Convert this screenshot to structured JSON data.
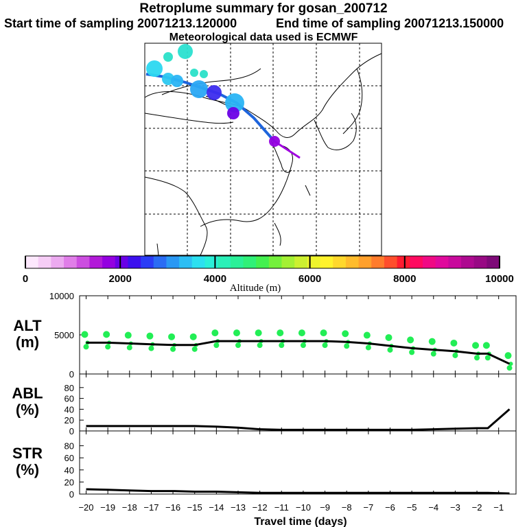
{
  "header": {
    "title": "Retroplume summary for gosan_200712",
    "start_label": "Start time of sampling 20071213.120000",
    "end_label": "End time of sampling 20071213.150000",
    "met_label": "Meteorological data used is ECMWF"
  },
  "map": {
    "description": "Retroplume cluster positions over Asia, centroid path from central Asia to Korea",
    "plume_color": "#1e64dc",
    "release_color": "#a000e0"
  },
  "colorbar": {
    "label": "Altitude (m)",
    "tick_labels": [
      "0",
      "2000",
      "4000",
      "6000",
      "8000",
      "10000"
    ],
    "range": [
      0,
      10000
    ],
    "colors": [
      "#fde8fd",
      "#f6cdf6",
      "#ecaaf0",
      "#e07ee8",
      "#cc4ee0",
      "#b21ad8",
      "#9400e0",
      "#6a00e6",
      "#3c10ee",
      "#2a3cf6",
      "#2a6cf4",
      "#2a98f4",
      "#2cbef4",
      "#2ce0f0",
      "#2af0d8",
      "#2af0b8",
      "#2af098",
      "#30f078",
      "#44f050",
      "#74f03c",
      "#a4f034",
      "#ccf030",
      "#eef42c",
      "#fff22c",
      "#ffd82c",
      "#ffbc2c",
      "#ffa02c",
      "#ff7c2c",
      "#ff4e2c",
      "#ff1c30",
      "#ff0a60",
      "#f00a84",
      "#e00a9c",
      "#c80a9c",
      "#ae0a90",
      "#980a84",
      "#7e0a78"
    ]
  },
  "chart_data": [
    {
      "type": "line",
      "name": "ALT",
      "ylabel": "ALT (m)",
      "ylabel_lines": [
        "ALT",
        "(m)"
      ],
      "ylim": [
        0,
        10000
      ],
      "yticks": [
        "10000",
        "5000",
        "0"
      ],
      "x": [
        -20,
        -19,
        -18,
        -17,
        -16,
        -15,
        -14,
        -13,
        -12,
        -11,
        -10,
        -9,
        -8,
        -7,
        -6,
        -5,
        -4,
        -3,
        -2,
        -1.5,
        -0.5
      ],
      "values": [
        4000,
        4000,
        3900,
        3800,
        3700,
        3700,
        4200,
        4200,
        4200,
        4200,
        4200,
        4200,
        4100,
        3900,
        3600,
        3300,
        3100,
        2900,
        2600,
        2600,
        1300
      ],
      "marker_color": "#22ee55",
      "line_color": "#000000"
    },
    {
      "type": "line",
      "name": "ABL",
      "ylabel": "ABL (%)",
      "ylabel_lines": [
        "ABL",
        "(%)"
      ],
      "ylim": [
        0,
        100
      ],
      "yticks": [
        "80",
        "60",
        "40",
        "20",
        "0"
      ],
      "x": [
        -20,
        -19,
        -18,
        -17,
        -16,
        -15,
        -14,
        -13,
        -12,
        -11,
        -10,
        -9,
        -8,
        -7,
        -6,
        -5,
        -4,
        -3,
        -2,
        -1.5,
        -0.5
      ],
      "values": [
        9,
        9,
        9,
        9,
        9,
        9,
        8,
        6,
        3,
        2,
        2,
        2,
        2,
        2,
        2,
        2,
        3,
        4,
        5,
        5,
        40
      ],
      "line_color": "#000000"
    },
    {
      "type": "line",
      "name": "STR",
      "ylabel": "STR (%)",
      "ylabel_lines": [
        "STR",
        "(%)"
      ],
      "ylim": [
        0,
        100
      ],
      "yticks": [
        "80",
        "60",
        "40",
        "20",
        "0"
      ],
      "x": [
        -20,
        -19,
        -18,
        -17,
        -16,
        -15,
        -14,
        -13,
        -12,
        -11,
        -10,
        -9,
        -8,
        -7,
        -6,
        -5,
        -4,
        -3,
        -2,
        -1.5,
        -0.5
      ],
      "values": [
        8,
        7,
        6,
        5,
        5,
        4,
        4,
        3,
        2,
        2,
        2,
        2,
        2,
        2,
        2,
        2,
        2,
        2,
        2,
        2,
        1
      ],
      "line_color": "#000000"
    }
  ],
  "xaxis": {
    "label": "Travel time (days)",
    "range": [
      -20.3,
      -0.2
    ],
    "tick_values": [
      -20,
      -19,
      -18,
      -17,
      -16,
      -15,
      -14,
      -13,
      -12,
      -11,
      -10,
      -9,
      -8,
      -7,
      -6,
      -5,
      -4,
      -3,
      -2,
      -1
    ],
    "tick_labels": [
      "−20",
      "−19",
      "−18",
      "−17",
      "−16",
      "−15",
      "−14",
      "−13",
      "−12",
      "−11",
      "−10",
      "−9",
      "−8",
      "−7",
      "−6",
      "−5",
      "−4",
      "−3",
      "−2",
      "−1"
    ]
  }
}
